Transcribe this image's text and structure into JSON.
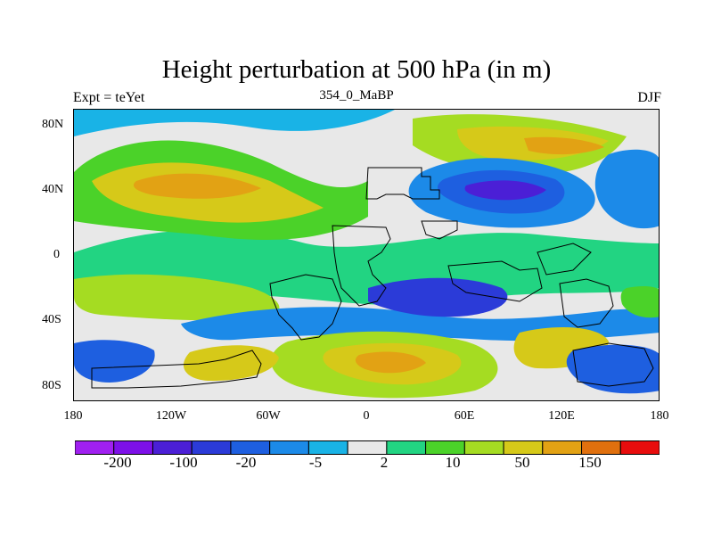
{
  "title": "Height perturbation at 500 hPa (in m)",
  "left_label": "Expt = teYet",
  "center_label": "354_0_MaBP",
  "right_label": "DJF",
  "y_axis_labels": [
    "80N",
    "40N",
    "0",
    "40S",
    "80S"
  ],
  "x_axis_labels": [
    "180",
    "120W",
    "60W",
    "0",
    "60E",
    "120E",
    "180"
  ],
  "colorbar": {
    "colors": [
      "#a020f0",
      "#7d10e8",
      "#4b1fd6",
      "#2b3bd8",
      "#1e5fe0",
      "#1c8ae8",
      "#19b3e6",
      "#e8e8e8",
      "#22d482",
      "#4bd229",
      "#a5dc22",
      "#d6c919",
      "#e2a214",
      "#e0700e",
      "#e80d0d"
    ],
    "labels": [
      "-200",
      "-100",
      "-20",
      "-5",
      "2",
      "10",
      "50",
      "150"
    ]
  },
  "map_palette": {
    "background": "#e8e8e8",
    "deep_blue": "#4b1fd6",
    "blue": "#2b3bd8",
    "mid_blue": "#1e5fe0",
    "light_blue": "#1c8ae8",
    "cyan": "#19b3e6",
    "green": "#22d482",
    "bright_green": "#4bd229",
    "yellow_green": "#a5dc22",
    "yellow": "#d6c919",
    "orange": "#e2a214"
  }
}
